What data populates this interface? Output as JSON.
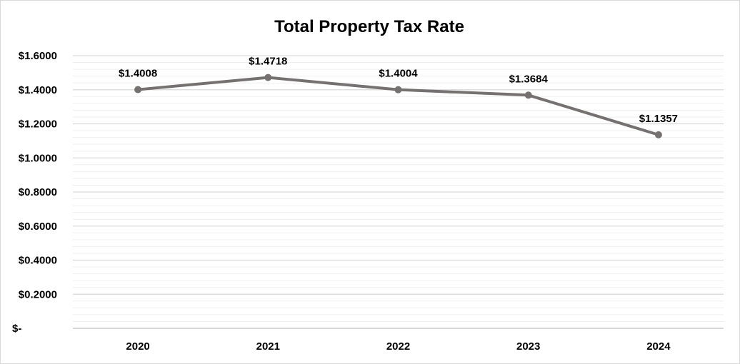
{
  "chart_data": {
    "type": "line",
    "title": "Total Property Tax Rate",
    "categories": [
      "2020",
      "2021",
      "2022",
      "2023",
      "2024"
    ],
    "series": [
      {
        "values": [
          1.4008,
          1.4718,
          1.4004,
          1.3684,
          1.1357
        ],
        "data_labels": [
          "$1.4008",
          "$1.4718",
          "$1.4004",
          "$1.3684",
          "$1.1357"
        ],
        "color": "#767171"
      }
    ],
    "ylim": [
      0,
      1.6
    ],
    "y_ticks": [
      {
        "value": 1.6,
        "label": "$1.6000"
      },
      {
        "value": 1.4,
        "label": "$1.4000"
      },
      {
        "value": 1.2,
        "label": "$1.2000"
      },
      {
        "value": 1.0,
        "label": "$1.0000"
      },
      {
        "value": 0.8,
        "label": "$0.8000"
      },
      {
        "value": 0.6,
        "label": "$0.6000"
      },
      {
        "value": 0.4,
        "label": "$0.4000"
      },
      {
        "value": 0.2,
        "label": "$0.2000"
      },
      {
        "value": 0,
        "label": "$-"
      }
    ],
    "xlabel": "",
    "ylabel": "",
    "grid": true,
    "minor_grid": true,
    "legend": "none"
  }
}
